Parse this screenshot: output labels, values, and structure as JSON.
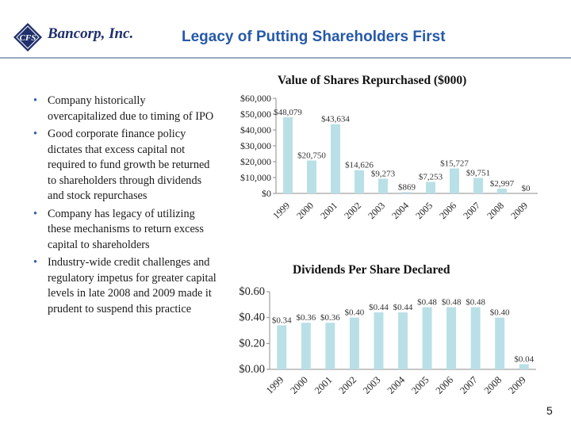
{
  "header": {
    "logo_text": "Bancorp, Inc.",
    "logo_mark": "CFS",
    "title": "Legacy of Putting Shareholders First"
  },
  "bullets": [
    "Company historically overcapitalized due to timing of IPO",
    "Good corporate finance policy dictates that excess capital not required to fund growth be returned to shareholders through dividends and stock repurchases",
    "Company has legacy of utilizing these mechanisms to return excess capital to shareholders",
    "Industry-wide credit challenges and regulatory impetus for greater capital levels in late 2008 and 2009 made it prudent to suspend this practice"
  ],
  "page_number": "5",
  "colors": {
    "bar": "#b9e0e6",
    "title": "#2559a8",
    "logo": "#1f2f6b",
    "bullet": "#2d5ea9"
  },
  "chart_data": [
    {
      "type": "bar",
      "title": "Value of Shares Repurchased ($000)",
      "categories": [
        "1999",
        "2000",
        "2001",
        "2002",
        "2003",
        "2004",
        "2005",
        "2006",
        "2007",
        "2008",
        "2009"
      ],
      "values": [
        48079,
        20750,
        43634,
        14626,
        9273,
        869,
        7253,
        15727,
        9751,
        2997,
        0
      ],
      "data_labels": [
        "$48,079",
        "$20,750",
        "$43,634",
        "$14,626",
        "$9,273",
        "$869",
        "$7,253",
        "$15,727",
        "$9,751",
        "$2,997",
        "$0"
      ],
      "yticks": [
        0,
        10000,
        20000,
        30000,
        40000,
        50000,
        60000
      ],
      "ytick_labels": [
        "$0",
        "$10,000",
        "$20,000",
        "$30,000",
        "$40,000",
        "$50,000",
        "$60,000"
      ],
      "ylim": [
        0,
        60000
      ],
      "grid": false,
      "legend": "none"
    },
    {
      "type": "bar",
      "title": "Dividends Per Share Declared",
      "categories": [
        "1999",
        "2000",
        "2001",
        "2002",
        "2003",
        "2004",
        "2005",
        "2006",
        "2007",
        "2008",
        "2009"
      ],
      "values": [
        0.34,
        0.36,
        0.36,
        0.4,
        0.44,
        0.44,
        0.48,
        0.48,
        0.48,
        0.4,
        0.04
      ],
      "data_labels": [
        "$0.34",
        "$0.36",
        "$0.36",
        "$0.40",
        "$0.44",
        "$0.44",
        "$0.48",
        "$0.48",
        "$0.48",
        "$0.40",
        "$0.04"
      ],
      "yticks": [
        0,
        0.2,
        0.4,
        0.6
      ],
      "ytick_labels": [
        "$0.00",
        "$0.20",
        "$0.40",
        "$0.60"
      ],
      "ylim": [
        0,
        0.6
      ],
      "grid": false,
      "legend": "none"
    }
  ]
}
